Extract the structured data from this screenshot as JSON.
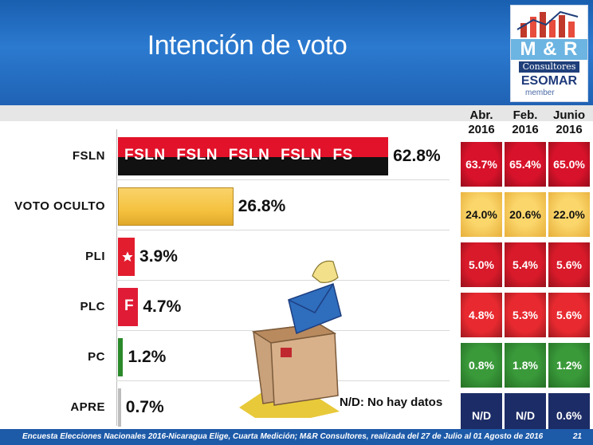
{
  "slide": {
    "title": "Intención de voto",
    "footer_text": "Encuesta Elecciones Nacionales 2016-Nicaragua Elige, Cuarta Medición; M&R Consultores, realizada del 27 de Julio al 01 Agosto de 2016",
    "page_number": "21",
    "note": "N/D: No hay datos"
  },
  "logo": {
    "name": "M & R",
    "sub": "Consultores",
    "esomar": "ESOMAR",
    "member": "member"
  },
  "chart_data": {
    "type": "bar",
    "orientation": "horizontal",
    "categories": [
      "FSLN",
      "VOTO OCULTO",
      "PLI",
      "PLC",
      "PC",
      "APRE"
    ],
    "values": [
      62.8,
      26.8,
      3.9,
      4.7,
      1.2,
      0.7
    ],
    "value_labels": [
      "62.8%",
      "26.8%",
      "3.9%",
      "4.7%",
      "1.2%",
      "0.7%"
    ],
    "bar_text": {
      "FSLN": "FSLN FSLN FSLN FSLN FS",
      "PLC": "F"
    },
    "colors": {
      "FSLN_top": "#e2122a",
      "FSLN_bottom": "#111111",
      "VOTO OCULTO": "#f5c23f",
      "PLI": "#e21d2e",
      "PLC": "#e01b35",
      "PC": "#2a8a2a",
      "APRE": "#bdbdbd"
    }
  },
  "table": {
    "headers": [
      {
        "month": "Abr.",
        "year": "2016"
      },
      {
        "month": "Feb.",
        "year": "2016"
      },
      {
        "month": "Junio",
        "year": "2016"
      }
    ],
    "rows": [
      {
        "party": "FSLN",
        "color": "#d8122a",
        "text_color": "#ffffff",
        "values": [
          "63.7%",
          "65.4%",
          "65.0%"
        ]
      },
      {
        "party": "VOTO OCULTO",
        "color": "#f5c23f",
        "text_color": "#111111",
        "values": [
          "24.0%",
          "20.6%",
          "22.0%"
        ]
      },
      {
        "party": "PLI",
        "color": "#d81a2a",
        "text_color": "#ffffff",
        "values": [
          "5.0%",
          "5.4%",
          "5.6%"
        ]
      },
      {
        "party": "PLC",
        "color": "#e82a30",
        "text_color": "#ffffff",
        "values": [
          "4.8%",
          "5.3%",
          "5.6%"
        ]
      },
      {
        "party": "PC",
        "color": "#2e8a2e",
        "text_color": "#ffffff",
        "values": [
          "0.8%",
          "1.8%",
          "1.2%"
        ]
      },
      {
        "party": "APRE",
        "color": "#1c2c66",
        "text_color": "#ffffff",
        "values": [
          "N/D",
          "N/D",
          "0.6%"
        ]
      }
    ]
  }
}
